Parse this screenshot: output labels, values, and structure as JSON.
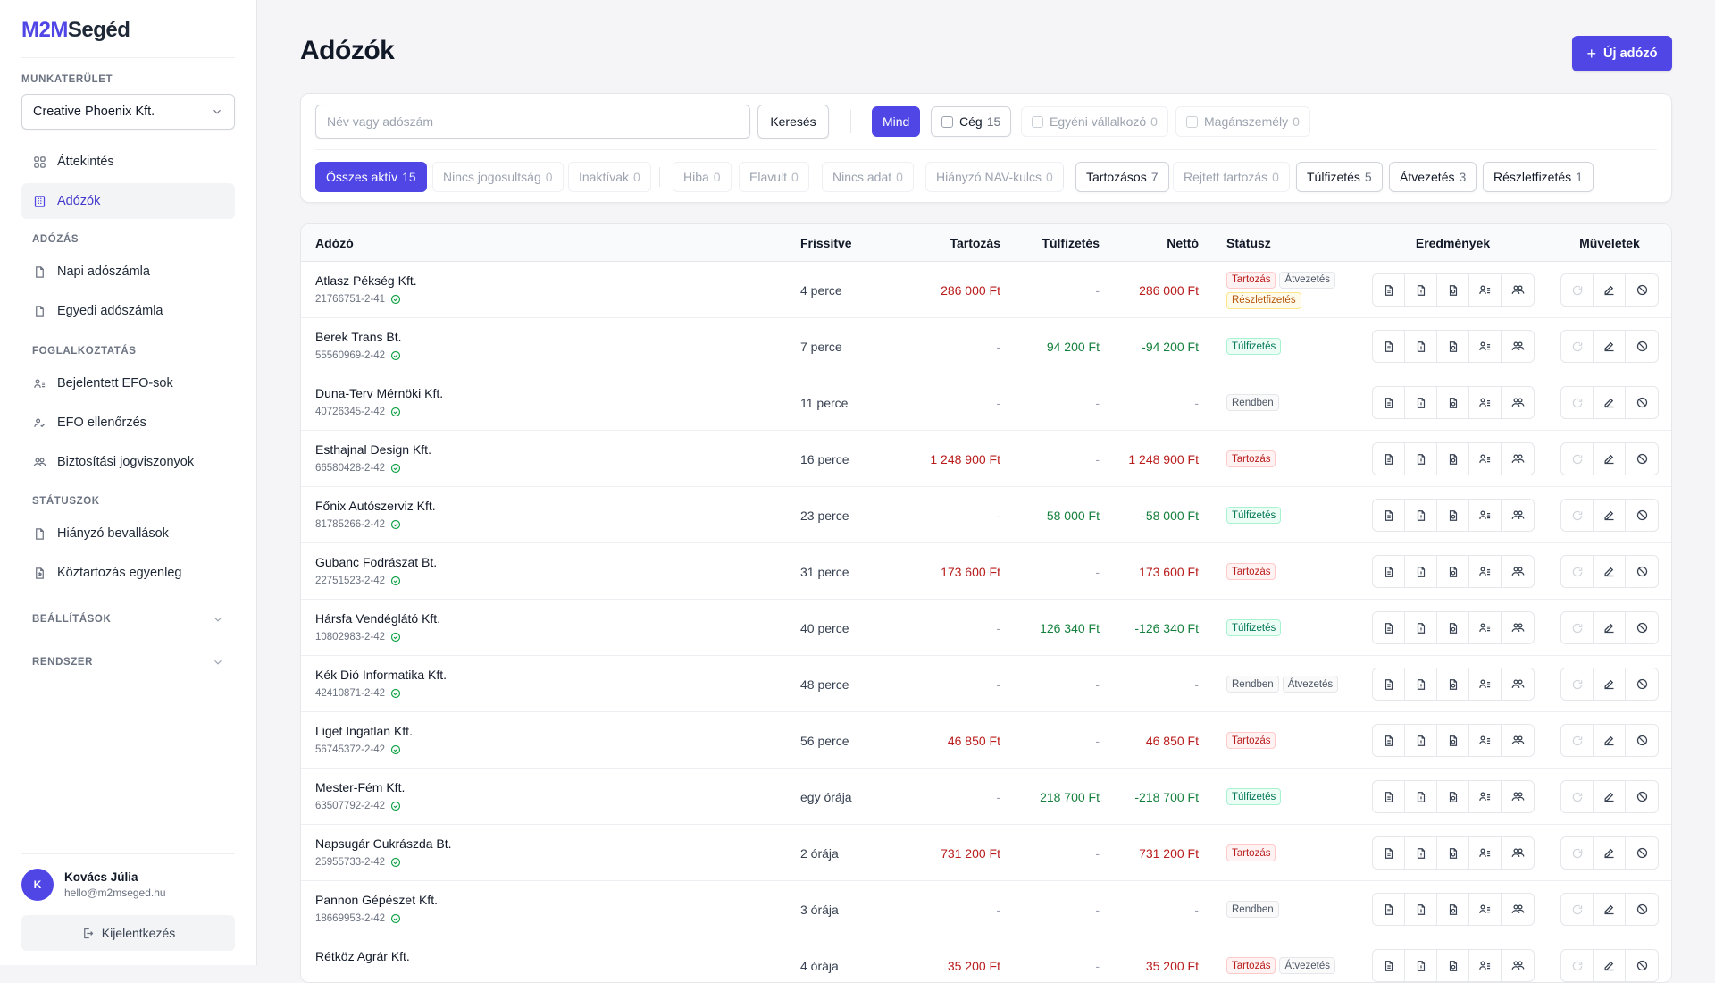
{
  "app": {
    "logo_primary": "M2M",
    "logo_secondary": "Segéd"
  },
  "sidebar": {
    "workspace_label": "MUNKATERÜLET",
    "workspace_value": "Creative Phoenix Kft.",
    "nav_overview": "Áttekintés",
    "nav_taxpayers": "Adózók",
    "sec_tax": "ADÓZÁS",
    "nav_daily": "Napi adószámla",
    "nav_single": "Egyedi adószámla",
    "sec_employment": "FOGLALKOZTATÁS",
    "nav_efo_reported": "Bejelentett EFO-sok",
    "nav_efo_check": "EFO ellenőrzés",
    "nav_insurance": "Biztosítási jogviszonyok",
    "sec_statuses": "STÁTUSZOK",
    "nav_missing": "Hiányzó bevallások",
    "nav_balance": "Köztartozás egyenleg",
    "sec_settings": "BEÁLLÍTÁSOK",
    "sec_system": "RENDSZER",
    "user_initial": "K",
    "user_name": "Kovács Júlia",
    "user_email": "hello@m2mseged.hu",
    "logout": "Kijelentkezés"
  },
  "header": {
    "title": "Adózók",
    "new_button": "Új adózó"
  },
  "filters": {
    "search_placeholder": "Név vagy adószám",
    "search_button": "Keresés",
    "type_all": "Mind",
    "type_company": "Cég",
    "type_company_count": "15",
    "type_sole": "Egyéni vállalkozó",
    "type_sole_count": "0",
    "type_private": "Magánszemély",
    "type_private_count": "0",
    "active_all": "Összes aktív",
    "active_all_count": "15",
    "no_auth": "Nincs jogosultság",
    "no_auth_count": "0",
    "inactive": "Inaktívak",
    "inactive_count": "0",
    "error": "Hiba",
    "error_count": "0",
    "outdated": "Elavult",
    "outdated_count": "0",
    "no_data": "Nincs adat",
    "no_data_count": "0",
    "missing_key": "Hiányzó NAV-kulcs",
    "missing_key_count": "0",
    "debtor": "Tartozásos",
    "debtor_count": "7",
    "hidden_debt": "Rejtett tartozás",
    "hidden_debt_count": "0",
    "overpaid": "Túlfizetés",
    "overpaid_count": "5",
    "transfer": "Átvezetés",
    "transfer_count": "3",
    "installment": "Részletfizetés",
    "installment_count": "1"
  },
  "table": {
    "columns": {
      "taxpayer": "Adózó",
      "updated": "Frissítve",
      "debt": "Tartozás",
      "overpay": "Túlfizetés",
      "net": "Nettó",
      "status": "Státusz",
      "results": "Eredmények",
      "actions": "Műveletek"
    },
    "rows": [
      {
        "name": "Atlasz Pékség Kft.",
        "tax": "21766751-2-41",
        "updated": "4 perce",
        "debt": "286 000 Ft",
        "overpay": "-",
        "net": "286 000 Ft",
        "net_color": "red",
        "badges": [
          {
            "t": "Tartozás",
            "c": "red"
          },
          {
            "t": "Átvezetés",
            "c": "gray"
          },
          {
            "t": "Részletfizetés",
            "c": "orange"
          }
        ]
      },
      {
        "name": "Berek Trans Bt.",
        "tax": "55560969-2-42",
        "updated": "7 perce",
        "debt": "-",
        "overpay": "94 200 Ft",
        "net": "-94 200 Ft",
        "net_color": "green",
        "badges": [
          {
            "t": "Túlfizetés",
            "c": "green"
          }
        ]
      },
      {
        "name": "Duna-Terv Mérnöki Kft.",
        "tax": "40726345-2-42",
        "updated": "11 perce",
        "debt": "-",
        "overpay": "-",
        "net": "-",
        "net_color": "muted",
        "badges": [
          {
            "t": "Rendben",
            "c": "gray"
          }
        ]
      },
      {
        "name": "Esthajnal Design Kft.",
        "tax": "66580428-2-42",
        "updated": "16 perce",
        "debt": "1 248 900 Ft",
        "overpay": "-",
        "net": "1 248 900 Ft",
        "net_color": "red",
        "badges": [
          {
            "t": "Tartozás",
            "c": "red"
          }
        ]
      },
      {
        "name": "Főnix Autószerviz Kft.",
        "tax": "81785266-2-42",
        "updated": "23 perce",
        "debt": "-",
        "overpay": "58 000 Ft",
        "net": "-58 000 Ft",
        "net_color": "green",
        "badges": [
          {
            "t": "Túlfizetés",
            "c": "green"
          }
        ]
      },
      {
        "name": "Gubanc Fodrászat Bt.",
        "tax": "22751523-2-42",
        "updated": "31 perce",
        "debt": "173 600 Ft",
        "overpay": "-",
        "net": "173 600 Ft",
        "net_color": "red",
        "badges": [
          {
            "t": "Tartozás",
            "c": "red"
          }
        ]
      },
      {
        "name": "Hársfa Vendéglátó Kft.",
        "tax": "10802983-2-42",
        "updated": "40 perce",
        "debt": "-",
        "overpay": "126 340 Ft",
        "net": "-126 340 Ft",
        "net_color": "green",
        "badges": [
          {
            "t": "Túlfizetés",
            "c": "green"
          }
        ]
      },
      {
        "name": "Kék Dió Informatika Kft.",
        "tax": "42410871-2-42",
        "updated": "48 perce",
        "debt": "-",
        "overpay": "-",
        "net": "-",
        "net_color": "muted",
        "badges": [
          {
            "t": "Rendben",
            "c": "gray"
          },
          {
            "t": "Átvezetés",
            "c": "gray"
          }
        ]
      },
      {
        "name": "Liget Ingatlan Kft.",
        "tax": "56745372-2-42",
        "updated": "56 perce",
        "debt": "46 850 Ft",
        "overpay": "-",
        "net": "46 850 Ft",
        "net_color": "red",
        "badges": [
          {
            "t": "Tartozás",
            "c": "red"
          }
        ]
      },
      {
        "name": "Mester-Fém Kft.",
        "tax": "63507792-2-42",
        "updated": "egy órája",
        "debt": "-",
        "overpay": "218 700 Ft",
        "net": "-218 700 Ft",
        "net_color": "green",
        "badges": [
          {
            "t": "Túlfizetés",
            "c": "green"
          }
        ]
      },
      {
        "name": "Napsugár Cukrászda Bt.",
        "tax": "25955733-2-42",
        "updated": "2 órája",
        "debt": "731 200 Ft",
        "overpay": "-",
        "net": "731 200 Ft",
        "net_color": "red",
        "badges": [
          {
            "t": "Tartozás",
            "c": "red"
          }
        ]
      },
      {
        "name": "Pannon Gépészet Kft.",
        "tax": "18669953-2-42",
        "updated": "3 órája",
        "debt": "-",
        "overpay": "-",
        "net": "-",
        "net_color": "muted",
        "badges": [
          {
            "t": "Rendben",
            "c": "gray"
          }
        ]
      },
      {
        "name": "Rétköz Agrár Kft.",
        "tax": "",
        "updated": "4 órája",
        "debt": "35 200 Ft",
        "overpay": "-",
        "net": "35 200 Ft",
        "net_color": "red",
        "badges": [
          {
            "t": "Tartozás",
            "c": "red"
          },
          {
            "t": "Átvezetés",
            "c": "gray"
          }
        ]
      }
    ]
  }
}
